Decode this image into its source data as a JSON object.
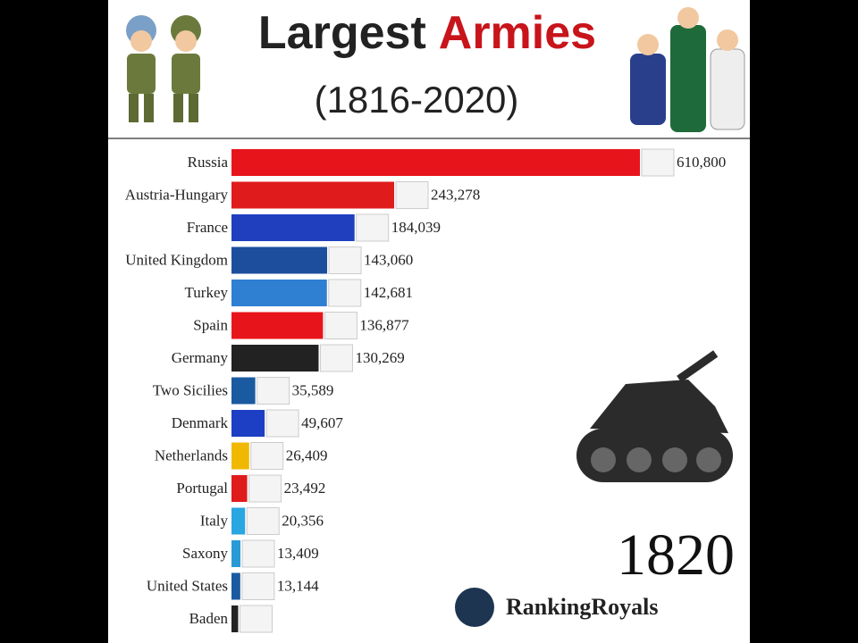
{
  "chart_data": {
    "type": "bar",
    "orientation": "horizontal",
    "title": "Largest",
    "title_highlight": "Armies",
    "subtitle": "(1816-2020)",
    "year": "1820",
    "brand": "RankingRoyals",
    "categories": [
      "Russia",
      "Austria-Hungary",
      "France",
      "United Kingdom",
      "Turkey",
      "Spain",
      "Germany",
      "Two Sicilies",
      "Denmark",
      "Netherlands",
      "Portugal",
      "Italy",
      "Saxony",
      "United States",
      "Baden"
    ],
    "values": [
      610800,
      243278,
      184039,
      143060,
      142681,
      136877,
      130269,
      35589,
      49607,
      26409,
      23492,
      20356,
      13409,
      13144,
      10000
    ],
    "value_labels": [
      "610,800",
      "243,278",
      "184,039",
      "143,060",
      "142,681",
      "136,877",
      "130,269",
      "35,589",
      "49,607",
      "26,409",
      "23,492",
      "20,356",
      "13,409",
      "13,144",
      null
    ],
    "colors": [
      "#e8141b",
      "#e01b1b",
      "#1f3fbf",
      "#1d4e9e",
      "#2f7fd3",
      "#e8141b",
      "#222222",
      "#1a5aa0",
      "#1c3fc4",
      "#f0b800",
      "#e01b1b",
      "#2aa6e0",
      "#2a9ad6",
      "#1a5aa0",
      "#222222"
    ]
  }
}
